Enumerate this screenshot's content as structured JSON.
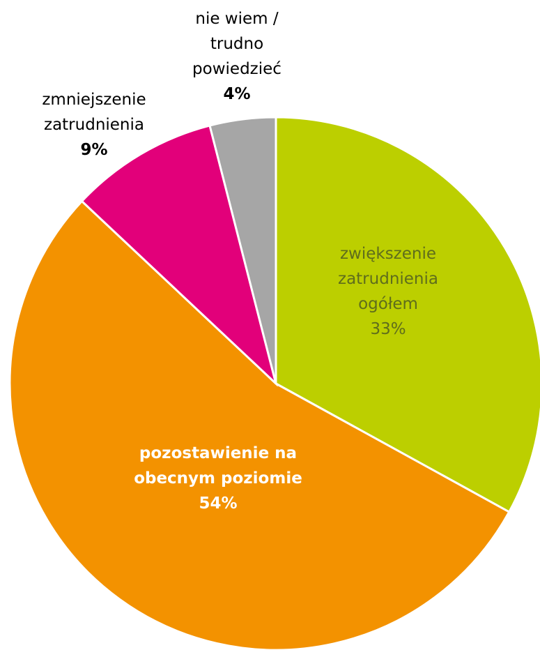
{
  "chart_data": {
    "type": "pie",
    "categories": [
      "zwiększenie zatrudnienia ogółem",
      "pozostawienie na obecnym poziomie",
      "zmniejszenie zatrudnienia",
      "nie wiem / trudno powiedzieć"
    ],
    "values": [
      33,
      54,
      9,
      4
    ],
    "value_labels": [
      "33%",
      "54%",
      "9%",
      "4%"
    ],
    "colors": [
      "#bccf00",
      "#f39200",
      "#e2007a",
      "#a6a6a6"
    ]
  }
}
